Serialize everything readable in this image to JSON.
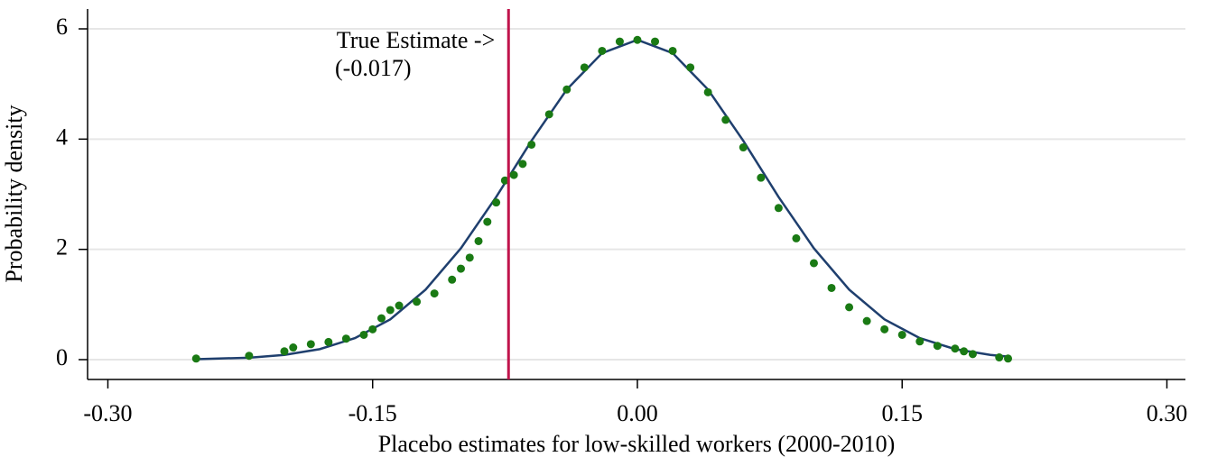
{
  "chart_data": {
    "type": "scatter",
    "x_label": "Placebo estimates for low-skilled workers (2000-2010)",
    "y_label": "Probability density",
    "xlim": [
      -0.3115,
      0.3105
    ],
    "ylim": [
      -0.36,
      6.36
    ],
    "xticks": [
      {
        "value": -0.3,
        "label": "-0.30"
      },
      {
        "value": -0.15,
        "label": "-0.15"
      },
      {
        "value": 0,
        "label": "0.00"
      },
      {
        "value": 0.15,
        "label": "0.15"
      },
      {
        "value": 0.3,
        "label": "0.30"
      }
    ],
    "yticks": [
      0,
      2,
      4,
      6
    ],
    "grid": true,
    "series": [
      {
        "mode": "markers",
        "color": "#1a7a14",
        "x": [
          -0.25,
          -0.22,
          -0.2,
          -0.195,
          -0.185,
          -0.175,
          -0.165,
          -0.155,
          -0.15,
          -0.145,
          -0.14,
          -0.135,
          -0.125,
          -0.115,
          -0.105,
          -0.1,
          -0.095,
          -0.09,
          -0.085,
          -0.08,
          -0.075,
          -0.07,
          -0.065,
          -0.06,
          -0.05,
          -0.04,
          -0.03,
          -0.02,
          -0.01,
          0,
          0.01,
          0.02,
          0.03,
          0.04,
          0.05,
          0.06,
          0.07,
          0.08,
          0.09,
          0.1,
          0.11,
          0.12,
          0.13,
          0.14,
          0.15,
          0.16,
          0.17,
          0.18,
          0.185,
          0.19,
          0.205,
          0.21
        ],
        "values": [
          0.02,
          0.07,
          0.15,
          0.22,
          0.28,
          0.32,
          0.38,
          0.45,
          0.55,
          0.75,
          0.9,
          0.98,
          1.05,
          1.2,
          1.45,
          1.65,
          1.85,
          2.15,
          2.5,
          2.85,
          3.25,
          3.35,
          3.55,
          3.9,
          4.45,
          4.9,
          5.3,
          5.6,
          5.77,
          5.8,
          5.77,
          5.6,
          5.3,
          4.85,
          4.35,
          3.85,
          3.3,
          2.75,
          2.2,
          1.75,
          1.3,
          0.95,
          0.7,
          0.55,
          0.45,
          0.33,
          0.25,
          0.2,
          0.15,
          0.1,
          0.04,
          0.02
        ]
      },
      {
        "mode": "line",
        "color": "#1f3f6e",
        "x": [
          -0.25,
          -0.22,
          -0.2,
          -0.18,
          -0.16,
          -0.14,
          -0.12,
          -0.1,
          -0.08,
          -0.06,
          -0.04,
          -0.02,
          0,
          0.02,
          0.04,
          0.06,
          0.08,
          0.1,
          0.12,
          0.14,
          0.16,
          0.18,
          0.2,
          0.21
        ],
        "values": [
          0.008,
          0.035,
          0.085,
          0.19,
          0.39,
          0.73,
          1.27,
          2.02,
          2.95,
          3.97,
          4.9,
          5.56,
          5.8,
          5.56,
          4.9,
          3.97,
          2.95,
          2.02,
          1.27,
          0.73,
          0.39,
          0.19,
          0.085,
          0.055
        ]
      }
    ],
    "annotation": {
      "text": [
        "True Estimate ->",
        "(-0.017)"
      ],
      "x": -0.073,
      "color": "#c0144c"
    }
  }
}
